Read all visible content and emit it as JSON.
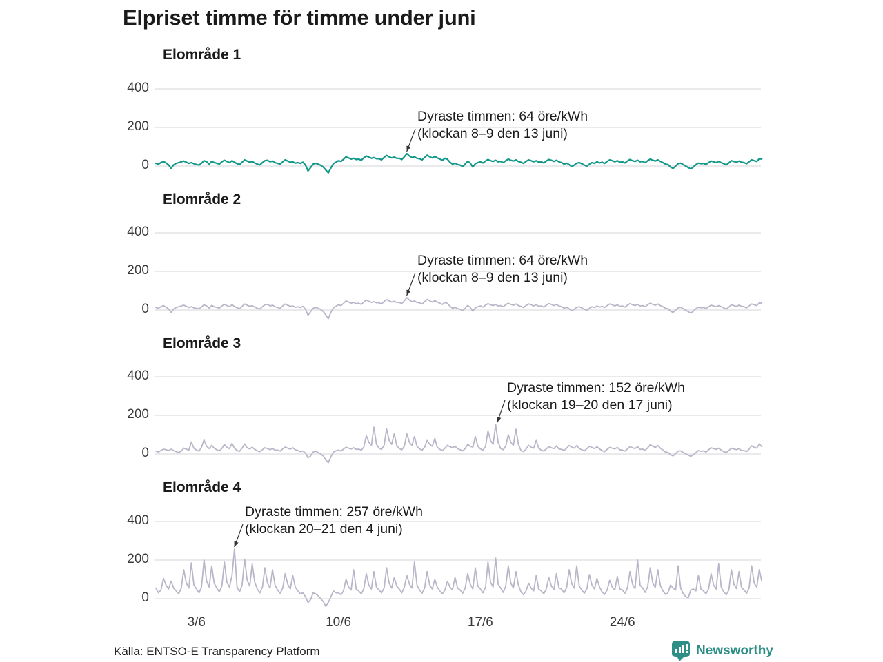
{
  "title": "Elpriset timme för timme under juni",
  "source": "Källa: ENTSO-E Transparency Platform",
  "branding": {
    "logo_text": "Newsworthy"
  },
  "colors": {
    "area1_line": "#129889",
    "other_line": "#b8b7c9",
    "grid": "#e3e3e5",
    "text": "#1a1a1a",
    "brand_teal": "#2e8f87",
    "arrow": "#333333"
  },
  "axis": {
    "yticks": [
      "400",
      "200",
      "0"
    ],
    "grid_values": [
      400,
      200,
      0
    ],
    "ylim": [
      -60,
      440
    ],
    "xticks": [
      {
        "label": "3/6",
        "day": 2
      },
      {
        "label": "10/6",
        "day": 9
      },
      {
        "label": "17/6",
        "day": 16
      },
      {
        "label": "24/6",
        "day": 23
      }
    ],
    "month": "juni",
    "sample_step_hours": 3
  },
  "chart_data": [
    {
      "type": "line",
      "title": "Elområde 1",
      "unit": "öre/kWh",
      "color": "#129889",
      "annotation": {
        "line1": "Dyraste timmen: 64 öre/kWh",
        "line2": "(klockan 8–9 den 13 juni)",
        "value": 64,
        "day": 12,
        "hour": 8
      },
      "values": [
        14,
        10,
        18,
        24,
        16,
        6,
        -12,
        6,
        14,
        18,
        22,
        26,
        20,
        14,
        18,
        12,
        8,
        5,
        15,
        28,
        22,
        10,
        25,
        18,
        15,
        10,
        22,
        30,
        24,
        18,
        28,
        20,
        12,
        8,
        20,
        32,
        26,
        20,
        24,
        16,
        10,
        6,
        18,
        28,
        30,
        22,
        26,
        18,
        14,
        10,
        22,
        32,
        26,
        20,
        22,
        15,
        18,
        14,
        20,
        5,
        -25,
        -8,
        10,
        14,
        10,
        4,
        -5,
        -20,
        -35,
        -10,
        12,
        20,
        28,
        24,
        35,
        48,
        42,
        36,
        40,
        34,
        36,
        30,
        42,
        52,
        46,
        40,
        44,
        38,
        38,
        32,
        45,
        55,
        48,
        42,
        46,
        40,
        40,
        34,
        48,
        64,
        52,
        44,
        48,
        40,
        38,
        32,
        44,
        56,
        48,
        42,
        50,
        42,
        36,
        30,
        40,
        35,
        20,
        10,
        15,
        8,
        5,
        -3,
        10,
        25,
        15,
        -5,
        12,
        18,
        22,
        16,
        26,
        34,
        28,
        24,
        30,
        22,
        24,
        18,
        28,
        36,
        30,
        26,
        32,
        24,
        20,
        14,
        24,
        32,
        28,
        22,
        28,
        20,
        22,
        16,
        26,
        34,
        30,
        24,
        30,
        22,
        18,
        10,
        15,
        8,
        -3,
        5,
        15,
        18,
        12,
        5,
        0,
        10,
        18,
        14,
        22,
        16,
        20,
        14,
        24,
        32,
        28,
        22,
        28,
        20,
        22,
        16,
        26,
        34,
        28,
        24,
        30,
        22,
        24,
        18,
        28,
        36,
        30,
        26,
        32,
        24,
        18,
        10,
        8,
        -5,
        -12,
        0,
        12,
        15,
        8,
        0,
        -8,
        -15,
        -5,
        8,
        15,
        12,
        14,
        8,
        18,
        26,
        22,
        18,
        24,
        18,
        12,
        6,
        16,
        28,
        24,
        20,
        26,
        20,
        18,
        12,
        22,
        32,
        28,
        24,
        38,
        36
      ]
    },
    {
      "type": "line",
      "title": "Elområde 2",
      "unit": "öre/kWh",
      "color": "#b8b7c9",
      "annotation": {
        "line1": "Dyraste timmen: 64 öre/kWh",
        "line2": "(klockan 8–9 den 13 juni)",
        "value": 64,
        "day": 12,
        "hour": 8
      },
      "values": [
        13,
        9,
        17,
        23,
        15,
        5,
        -13,
        5,
        13,
        17,
        21,
        25,
        19,
        13,
        17,
        11,
        9,
        6,
        16,
        27,
        21,
        9,
        24,
        17,
        14,
        9,
        21,
        29,
        23,
        17,
        27,
        19,
        11,
        7,
        19,
        31,
        25,
        19,
        23,
        15,
        9,
        5,
        17,
        27,
        29,
        21,
        25,
        17,
        13,
        9,
        21,
        31,
        25,
        19,
        21,
        14,
        17,
        13,
        19,
        4,
        -27,
        -9,
        9,
        13,
        9,
        3,
        -8,
        -25,
        -45,
        -12,
        11,
        19,
        27,
        23,
        34,
        47,
        41,
        35,
        39,
        33,
        35,
        29,
        41,
        51,
        45,
        39,
        43,
        37,
        37,
        31,
        44,
        54,
        47,
        41,
        45,
        39,
        39,
        33,
        47,
        64,
        51,
        43,
        47,
        39,
        37,
        31,
        43,
        55,
        47,
        41,
        49,
        41,
        35,
        29,
        39,
        34,
        19,
        9,
        14,
        7,
        4,
        -4,
        9,
        24,
        14,
        -6,
        11,
        17,
        21,
        15,
        25,
        33,
        27,
        23,
        29,
        21,
        23,
        17,
        27,
        35,
        29,
        25,
        31,
        23,
        19,
        13,
        23,
        31,
        27,
        21,
        27,
        19,
        21,
        15,
        25,
        33,
        29,
        23,
        29,
        21,
        17,
        9,
        14,
        7,
        -4,
        4,
        14,
        17,
        11,
        4,
        -1,
        9,
        17,
        13,
        21,
        15,
        19,
        13,
        23,
        31,
        27,
        21,
        27,
        19,
        21,
        15,
        25,
        33,
        27,
        23,
        29,
        21,
        23,
        17,
        27,
        35,
        29,
        25,
        31,
        23,
        17,
        9,
        7,
        -6,
        -13,
        -1,
        11,
        14,
        7,
        -1,
        -9,
        -16,
        -6,
        7,
        14,
        11,
        13,
        7,
        17,
        25,
        21,
        17,
        23,
        17,
        11,
        5,
        15,
        27,
        23,
        19,
        25,
        19,
        17,
        11,
        21,
        31,
        27,
        23,
        37,
        35
      ]
    },
    {
      "type": "line",
      "title": "Elområde 3",
      "unit": "öre/kWh",
      "color": "#b8b7c9",
      "annotation": {
        "line1": "Dyraste timmen: 152 öre/kWh",
        "line2": "(klockan 19–20 den 17 juni)",
        "value": 152,
        "day": 16,
        "hour": 19
      },
      "values": [
        15,
        10,
        18,
        25,
        22,
        18,
        25,
        18,
        12,
        8,
        15,
        30,
        25,
        20,
        62,
        30,
        20,
        15,
        35,
        73,
        40,
        28,
        45,
        30,
        22,
        16,
        28,
        50,
        35,
        28,
        55,
        30,
        18,
        14,
        30,
        52,
        32,
        26,
        35,
        24,
        16,
        12,
        22,
        32,
        28,
        22,
        28,
        20,
        20,
        15,
        26,
        36,
        30,
        25,
        32,
        22,
        18,
        12,
        15,
        5,
        -20,
        -10,
        10,
        14,
        8,
        0,
        -10,
        -30,
        -45,
        -15,
        10,
        16,
        20,
        15,
        25,
        35,
        30,
        26,
        32,
        24,
        25,
        20,
        35,
        95,
        60,
        45,
        139,
        50,
        30,
        24,
        45,
        130,
        70,
        50,
        105,
        45,
        28,
        22,
        40,
        105,
        60,
        45,
        90,
        40,
        26,
        20,
        35,
        70,
        50,
        40,
        80,
        35,
        24,
        18,
        30,
        45,
        38,
        32,
        40,
        28,
        22,
        16,
        28,
        50,
        40,
        35,
        90,
        40,
        26,
        20,
        38,
        120,
        70,
        50,
        152,
        60,
        28,
        22,
        40,
        100,
        60,
        45,
        128,
        50,
        18,
        12,
        25,
        45,
        35,
        30,
        70,
        30,
        20,
        15,
        26,
        38,
        32,
        28,
        42,
        26,
        24,
        18,
        30,
        44,
        36,
        30,
        45,
        28,
        22,
        16,
        28,
        40,
        34,
        28,
        38,
        26,
        18,
        12,
        24,
        34,
        30,
        26,
        34,
        22,
        20,
        15,
        26,
        38,
        32,
        28,
        38,
        24,
        25,
        19,
        32,
        48,
        40,
        34,
        44,
        30,
        20,
        10,
        8,
        -4,
        -10,
        2,
        15,
        16,
        8,
        0,
        -6,
        -12,
        -4,
        8,
        18,
        14,
        16,
        10,
        22,
        32,
        28,
        24,
        30,
        20,
        12,
        8,
        18,
        30,
        26,
        22,
        28,
        18,
        18,
        13,
        25,
        42,
        35,
        30,
        52,
        38
      ]
    },
    {
      "type": "line",
      "title": "Elområde 4",
      "unit": "öre/kWh",
      "color": "#b8b7c9",
      "annotation": {
        "line1": "Dyraste timmen: 257 öre/kWh",
        "line2": "(klockan 20–21 den 4 juni)",
        "value": 257,
        "day": 3,
        "hour": 20
      },
      "values": [
        55,
        30,
        45,
        105,
        70,
        50,
        90,
        55,
        40,
        25,
        55,
        150,
        80,
        55,
        185,
        70,
        50,
        30,
        60,
        200,
        90,
        60,
        170,
        80,
        55,
        35,
        65,
        190,
        85,
        60,
        120,
        257,
        60,
        35,
        70,
        205,
        95,
        65,
        180,
        85,
        50,
        30,
        60,
        160,
        80,
        55,
        150,
        70,
        45,
        28,
        55,
        130,
        75,
        50,
        120,
        60,
        40,
        25,
        30,
        10,
        -20,
        -5,
        30,
        25,
        15,
        0,
        -15,
        -40,
        -20,
        10,
        40,
        30,
        30,
        20,
        40,
        100,
        60,
        45,
        150,
        50,
        40,
        25,
        50,
        130,
        70,
        50,
        140,
        60,
        45,
        30,
        55,
        160,
        80,
        55,
        110,
        65,
        50,
        30,
        60,
        120,
        75,
        55,
        190,
        70,
        45,
        28,
        55,
        140,
        70,
        50,
        100,
        60,
        40,
        25,
        45,
        90,
        60,
        45,
        110,
        55,
        45,
        28,
        55,
        130,
        75,
        50,
        160,
        65,
        50,
        30,
        60,
        190,
        85,
        60,
        210,
        75,
        55,
        32,
        65,
        170,
        80,
        55,
        140,
        70,
        35,
        20,
        40,
        80,
        55,
        40,
        120,
        50,
        40,
        25,
        50,
        110,
        65,
        48,
        130,
        55,
        50,
        30,
        58,
        150,
        78,
        55,
        170,
        65,
        45,
        28,
        52,
        125,
        70,
        50,
        105,
        60,
        35,
        22,
        45,
        95,
        60,
        45,
        115,
        50,
        45,
        28,
        55,
        140,
        75,
        52,
        200,
        70,
        55,
        32,
        62,
        160,
        80,
        58,
        150,
        68,
        40,
        22,
        30,
        70,
        55,
        45,
        170,
        55,
        25,
        10,
        5,
        45,
        50,
        40,
        120,
        50,
        40,
        25,
        50,
        130,
        70,
        50,
        180,
        60,
        35,
        20,
        45,
        150,
        75,
        52,
        140,
        58,
        45,
        28,
        55,
        170,
        80,
        60,
        150,
        90
      ]
    }
  ]
}
